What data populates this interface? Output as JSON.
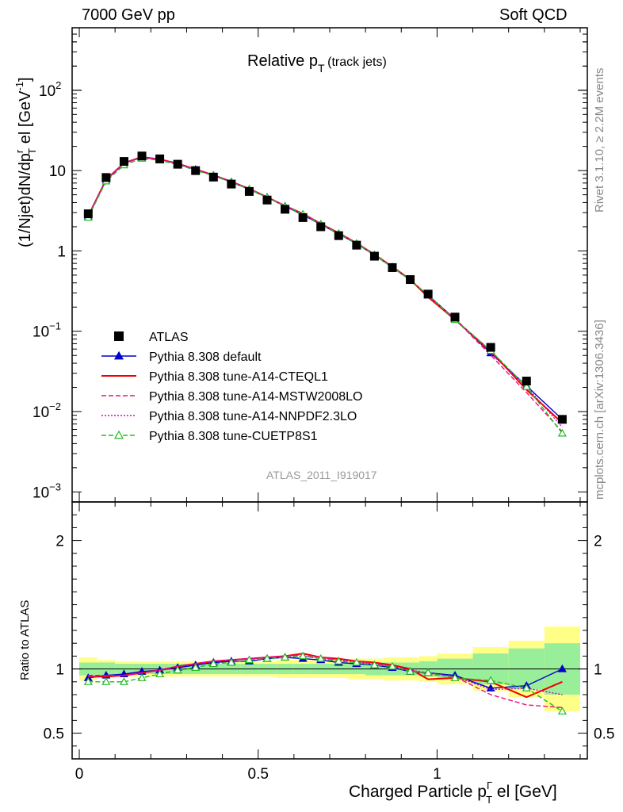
{
  "header": {
    "left": "7000 GeV pp",
    "right": "Soft QCD"
  },
  "side_text": {
    "rivet": "Rivet 3.1.10, ≥ 2.2M events",
    "mcplots": "mcplots.cern.ch [arXiv:1306.3436]"
  },
  "chart_data": {
    "type": "line",
    "title": "Relative p_T (track jets)",
    "title_main": "Relative p",
    "title_sub": "T",
    "title_extra": "(track jets)",
    "watermark": "ATLAS_2011_I919017",
    "xlabel": "Charged Particle pΓT el [GeV]",
    "xlabel_main": "Charged Particle p",
    "xlabel_sup": "Γ",
    "xlabel_sub": "T",
    "xlabel_tail": " el [GeV]",
    "ylabel": "(1/Njet)dN/dp^r_T el [GeV^-1]",
    "ylabel_a": "(1/Njet)dN/dp",
    "ylabel_sup1": "r",
    "ylabel_sub": "T",
    "ylabel_b": "el [GeV",
    "ylabel_sup2": "-1",
    "ylabel_c": "]",
    "ratio_ylabel": "Ratio to ATLAS",
    "xlim": [
      -0.02,
      1.42
    ],
    "ylim": [
      0.00075,
      600
    ],
    "yscale": "log",
    "ratio_ylim": [
      0.3,
      2.3
    ],
    "x_ticks": [
      "0",
      "0.5",
      "1"
    ],
    "x_tick_values": [
      0,
      0.5,
      1
    ],
    "y_ticks": [
      {
        "v": 100,
        "base": "10",
        "exp": "2"
      },
      {
        "v": 10,
        "base": "10",
        "exp": ""
      },
      {
        "v": 1,
        "base": "1",
        "exp": ""
      },
      {
        "v": 0.1,
        "base": "10",
        "exp": "−1"
      },
      {
        "v": 0.01,
        "base": "10",
        "exp": "−2"
      },
      {
        "v": 0.001,
        "base": "10",
        "exp": "−3"
      }
    ],
    "ratio_ticks": [
      "2",
      "1",
      "0.5"
    ],
    "ratio_tick_values": [
      2,
      1,
      0.5
    ],
    "x": [
      0.025,
      0.075,
      0.125,
      0.175,
      0.225,
      0.275,
      0.325,
      0.375,
      0.425,
      0.475,
      0.525,
      0.575,
      0.625,
      0.675,
      0.725,
      0.775,
      0.825,
      0.875,
      0.925,
      0.975,
      1.05,
      1.15,
      1.25,
      1.35
    ],
    "bin_edges": [
      0,
      0.05,
      0.1,
      0.15,
      0.2,
      0.25,
      0.3,
      0.35,
      0.4,
      0.45,
      0.5,
      0.55,
      0.6,
      0.65,
      0.7,
      0.75,
      0.8,
      0.85,
      0.9,
      0.95,
      1.0,
      1.1,
      1.2,
      1.3,
      1.4
    ],
    "data": {
      "name": "ATLAS",
      "values": [
        2.9,
        8.2,
        13.0,
        15.2,
        14.0,
        12.0,
        10.0,
        8.3,
        6.8,
        5.5,
        4.3,
        3.3,
        2.6,
        2.0,
        1.55,
        1.18,
        0.86,
        0.62,
        0.44,
        0.29,
        0.15,
        0.063,
        0.024,
        0.008
      ],
      "band_inner": [
        0.05,
        0.05,
        0.04,
        0.04,
        0.04,
        0.04,
        0.04,
        0.04,
        0.04,
        0.04,
        0.04,
        0.04,
        0.04,
        0.04,
        0.04,
        0.04,
        0.05,
        0.05,
        0.05,
        0.06,
        0.08,
        0.12,
        0.16,
        0.2
      ],
      "band_outer": [
        0.09,
        0.07,
        0.06,
        0.06,
        0.06,
        0.06,
        0.06,
        0.06,
        0.06,
        0.06,
        0.06,
        0.07,
        0.07,
        0.07,
        0.07,
        0.08,
        0.08,
        0.09,
        0.09,
        0.1,
        0.12,
        0.17,
        0.22,
        0.33
      ]
    },
    "series": [
      {
        "name": "Pythia 8.308 default",
        "color": "#0000cc",
        "dash": "",
        "marker": "triangle-filled",
        "ratio": [
          0.93,
          0.95,
          0.96,
          0.98,
          0.99,
          1.01,
          1.03,
          1.05,
          1.06,
          1.06,
          1.08,
          1.09,
          1.08,
          1.07,
          1.05,
          1.04,
          1.03,
          1.01,
          0.98,
          0.97,
          0.95,
          0.85,
          0.87,
          1.0
        ]
      },
      {
        "name": "Pythia 8.308 tune-A14-CTEQL1",
        "color": "#ee0000",
        "dash": "",
        "marker": "none",
        "ratio": [
          0.94,
          0.94,
          0.95,
          0.97,
          0.99,
          1.02,
          1.04,
          1.06,
          1.07,
          1.08,
          1.09,
          1.1,
          1.12,
          1.09,
          1.08,
          1.06,
          1.05,
          1.03,
          1.0,
          0.92,
          0.93,
          0.9,
          0.78,
          0.9
        ]
      },
      {
        "name": "Pythia 8.308 tune-A14-MSTW2008LO",
        "color": "#ee1177",
        "dash": "6,3",
        "marker": "none",
        "ratio": [
          0.95,
          0.95,
          0.95,
          0.97,
          0.99,
          1.02,
          1.04,
          1.06,
          1.07,
          1.08,
          1.09,
          1.1,
          1.11,
          1.09,
          1.07,
          1.06,
          1.04,
          1.02,
          0.99,
          0.96,
          0.94,
          0.8,
          0.72,
          0.7
        ]
      },
      {
        "name": "Pythia 8.308 tune-A14-NNPDF2.3LO",
        "color": "#cc00cc",
        "dash": "2,2",
        "marker": "none",
        "ratio": [
          0.94,
          0.95,
          0.95,
          0.97,
          0.99,
          1.02,
          1.04,
          1.06,
          1.07,
          1.08,
          1.09,
          1.1,
          1.1,
          1.08,
          1.07,
          1.05,
          1.04,
          1.02,
          0.99,
          0.97,
          0.94,
          0.84,
          0.85,
          0.8
        ]
      },
      {
        "name": "Pythia 8.308 tune-CUETP8S1",
        "color": "#22bb22",
        "dash": "6,3",
        "marker": "triangle-open",
        "ratio": [
          0.9,
          0.9,
          0.9,
          0.93,
          0.96,
          0.99,
          1.01,
          1.04,
          1.05,
          1.07,
          1.08,
          1.09,
          1.1,
          1.08,
          1.06,
          1.05,
          1.03,
          1.02,
          0.98,
          0.97,
          0.93,
          0.91,
          0.85,
          0.67
        ]
      }
    ]
  }
}
